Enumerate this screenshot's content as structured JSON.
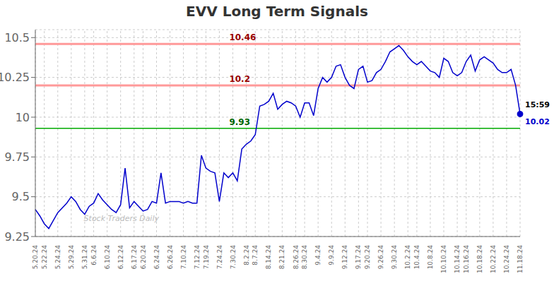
{
  "chart_data": {
    "type": "line",
    "title": "EVV Long Term Signals",
    "categories": [
      "5.20.24",
      null,
      "5.22.24",
      null,
      null,
      "5.24.24",
      null,
      null,
      "5.29.24",
      null,
      null,
      "5.31.24",
      null,
      "6.6.24",
      null,
      null,
      "6.10.24",
      null,
      null,
      "6.12.24",
      null,
      null,
      "6.17.24",
      null,
      "6.20.24",
      null,
      null,
      "6.24.24",
      null,
      null,
      "6.26.24",
      null,
      null,
      "7.10.24",
      null,
      null,
      "7.12.24",
      null,
      "7.19.24",
      null,
      null,
      "7.24.24",
      null,
      null,
      "7.30.24",
      null,
      null,
      "8.2.24",
      null,
      "8.7.24",
      null,
      null,
      "8.14.24",
      null,
      null,
      "8.21.24",
      null,
      null,
      "8.26.24",
      null,
      "8.30.24",
      null,
      null,
      "9.4.24",
      null,
      null,
      "9.9.24",
      null,
      null,
      "9.12.24",
      null,
      null,
      "9.17.24",
      null,
      "9.20.24",
      null,
      null,
      "9.26.24",
      null,
      null,
      "9.30.24",
      null,
      null,
      "10.2.24",
      null,
      "10.4.24",
      null,
      null,
      "10.8.24",
      null,
      null,
      "10.10.24",
      null,
      null,
      "10.14.24",
      null,
      "10.16.24",
      null,
      null,
      "10.18.24",
      null,
      null,
      "10.22.24",
      null,
      null,
      "10.24.24",
      null,
      null,
      "11.18.24"
    ],
    "values": [
      9.42,
      9.38,
      9.33,
      9.3,
      9.35,
      9.4,
      9.43,
      9.46,
      9.5,
      9.47,
      9.42,
      9.39,
      9.44,
      9.46,
      9.52,
      9.48,
      9.45,
      9.42,
      9.4,
      9.45,
      9.68,
      9.43,
      9.47,
      9.44,
      9.41,
      9.42,
      9.47,
      9.46,
      9.65,
      9.46,
      9.47,
      9.47,
      9.47,
      9.46,
      9.47,
      9.46,
      9.46,
      9.76,
      9.68,
      9.66,
      9.65,
      9.47,
      9.65,
      9.62,
      9.65,
      9.6,
      9.8,
      9.83,
      9.85,
      9.89,
      10.07,
      10.08,
      10.1,
      10.15,
      10.05,
      10.08,
      10.1,
      10.09,
      10.07,
      10.0,
      10.09,
      10.09,
      10.01,
      10.18,
      10.25,
      10.22,
      10.25,
      10.32,
      10.33,
      10.25,
      10.2,
      10.18,
      10.3,
      10.32,
      10.22,
      10.23,
      10.28,
      10.3,
      10.35,
      10.41,
      10.43,
      10.45,
      10.42,
      10.38,
      10.35,
      10.33,
      10.35,
      10.32,
      10.29,
      10.28,
      10.25,
      10.37,
      10.35,
      10.28,
      10.26,
      10.28,
      10.35,
      10.39,
      10.29,
      10.36,
      10.38,
      10.36,
      10.34,
      10.3,
      10.28,
      10.28,
      10.3,
      10.2,
      10.02
    ],
    "color": "#0000cc",
    "ylim": [
      9.25,
      10.55
    ],
    "yticks": [
      9.25,
      9.5,
      9.75,
      10,
      10.25,
      10.5
    ],
    "grid": true,
    "reference_lines": [
      {
        "y": 10.46,
        "label": "10.46",
        "color": "#ff9999",
        "label_color": "#990000"
      },
      {
        "y": 10.2,
        "label": "10.2",
        "color": "#ff9999",
        "label_color": "#990000"
      },
      {
        "y": 9.93,
        "label": "9.93",
        "color": "#00aa00",
        "label_color": "#006600"
      }
    ],
    "last_point_labels": {
      "time": "15:59",
      "value": "10.02"
    },
    "annotations": [
      "Stock Traders Daily"
    ]
  }
}
